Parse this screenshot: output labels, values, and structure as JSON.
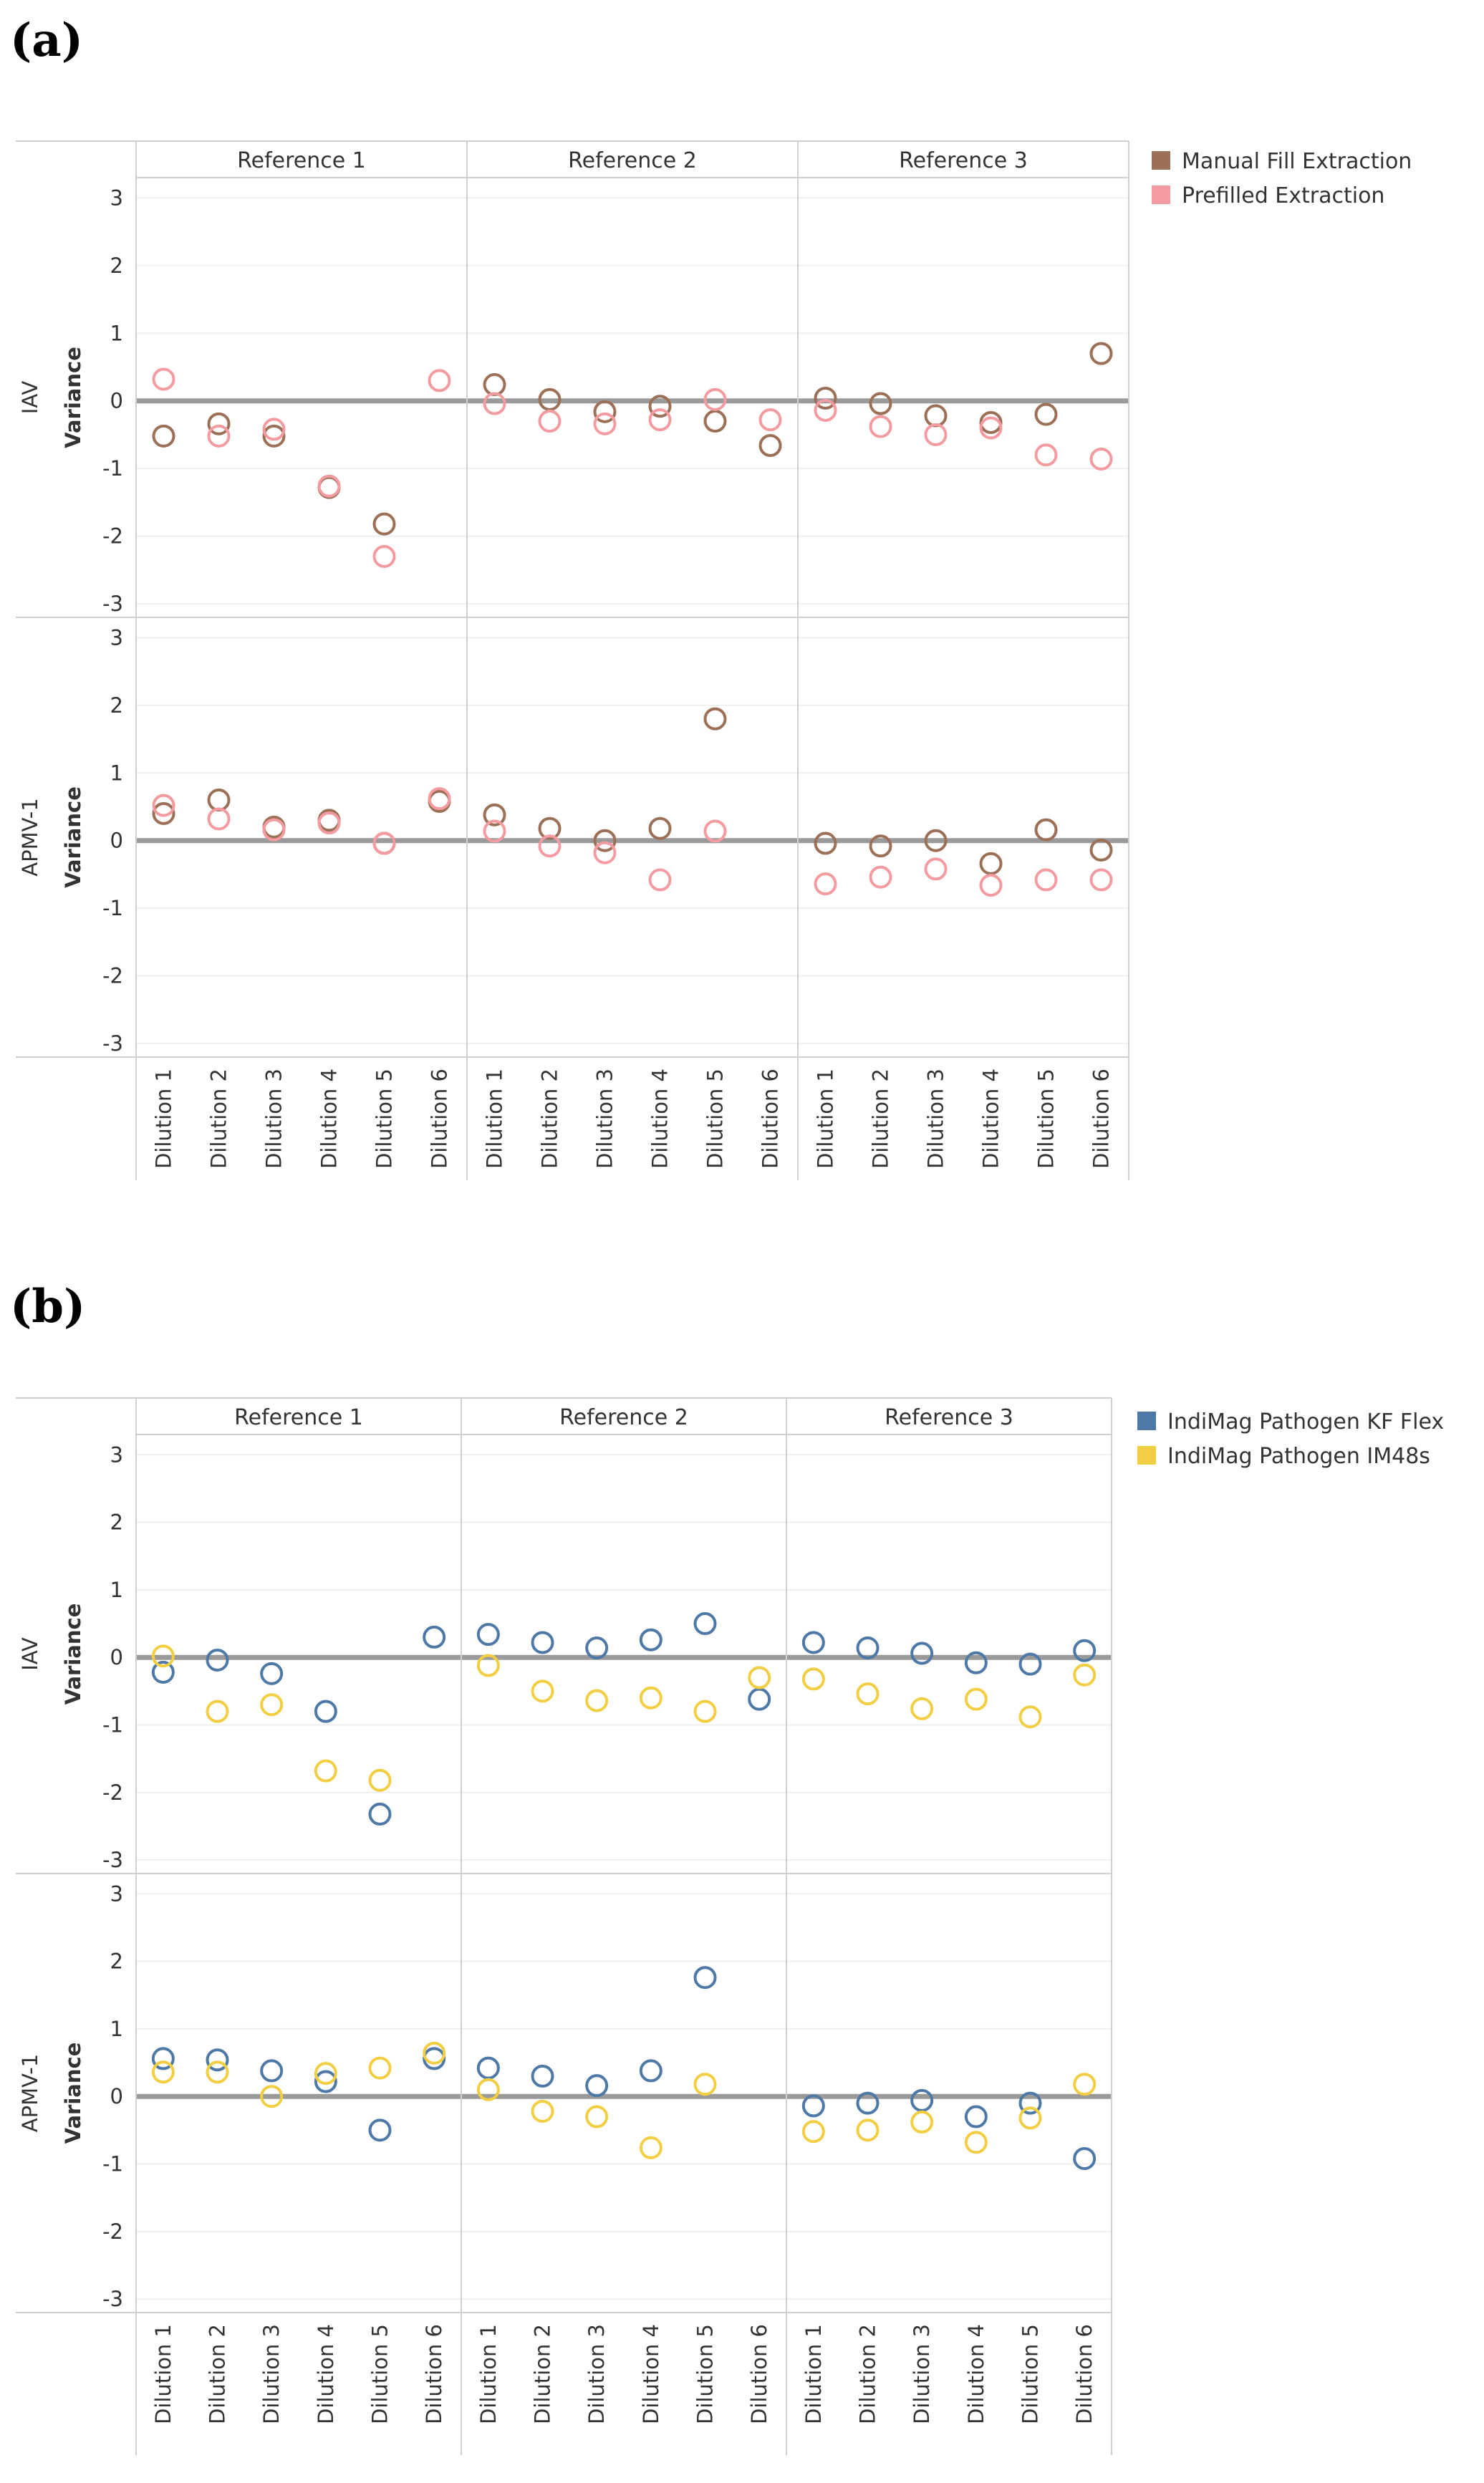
{
  "chart_data": [
    {
      "type": "scatter",
      "panel_label": "(a)",
      "column_titles": [
        "Reference 1",
        "Reference 2",
        "Reference 3"
      ],
      "categories": [
        "Dilution 1",
        "Dilution 2",
        "Dilution 3",
        "Dilution 4",
        "Dilution 5",
        "Dilution 6"
      ],
      "rows": [
        {
          "name": "IAV",
          "ylabel": "Variance"
        },
        {
          "name": "APMV-1",
          "ylabel": "Variance"
        }
      ],
      "yticks": [
        3,
        2,
        1,
        0,
        -1,
        -2,
        -3
      ],
      "ylim": [
        -3.2,
        3.3
      ],
      "legend_position": "top-right",
      "series": [
        {
          "name": "Manual Fill Extraction",
          "color": "#9c7057",
          "values": {
            "IAV": [
              [
                -0.52,
                -0.34,
                -0.52,
                -1.28,
                -1.82,
                null
              ],
              [
                0.24,
                0.02,
                -0.16,
                -0.08,
                -0.3,
                -0.66
              ],
              [
                0.04,
                -0.04,
                -0.22,
                -0.32,
                -0.2,
                0.7
              ]
            ],
            "APMV-1": [
              [
                0.4,
                0.6,
                0.2,
                0.3,
                -0.04,
                0.58
              ],
              [
                0.38,
                0.18,
                0.0,
                0.18,
                1.8,
                null
              ],
              [
                -0.04,
                -0.08,
                0.0,
                -0.34,
                0.16,
                -0.14
              ]
            ]
          }
        },
        {
          "name": "Prefilled Extraction",
          "color": "#f39ba0",
          "values": {
            "IAV": [
              [
                0.32,
                -0.52,
                -0.42,
                -1.26,
                -2.3,
                0.3
              ],
              [
                -0.04,
                -0.3,
                -0.34,
                -0.28,
                0.02,
                -0.28
              ],
              [
                -0.14,
                -0.38,
                -0.5,
                -0.4,
                -0.8,
                -0.86
              ]
            ],
            "APMV-1": [
              [
                0.52,
                0.32,
                0.16,
                0.26,
                -0.04,
                0.62
              ],
              [
                0.14,
                -0.08,
                -0.18,
                -0.58,
                0.14,
                null
              ],
              [
                -0.64,
                -0.54,
                -0.42,
                -0.66,
                -0.58,
                -0.58
              ]
            ]
          }
        }
      ]
    },
    {
      "type": "scatter",
      "panel_label": "(b)",
      "column_titles": [
        "Reference 1",
        "Reference 2",
        "Reference 3"
      ],
      "categories": [
        "Dilution 1",
        "Dilution 2",
        "Dilution 3",
        "Dilution 4",
        "Dilution 5",
        "Dilution 6"
      ],
      "rows": [
        {
          "name": "IAV",
          "ylabel": "Variance"
        },
        {
          "name": "APMV-1",
          "ylabel": "Variance"
        }
      ],
      "yticks": [
        3,
        2,
        1,
        0,
        -1,
        -2,
        -3
      ],
      "ylim": [
        -3.2,
        3.3
      ],
      "legend_position": "top-right",
      "series": [
        {
          "name": "IndiMag Pathogen KF Flex",
          "color": "#4e79a7",
          "values": {
            "IAV": [
              [
                -0.22,
                -0.04,
                -0.24,
                -0.8,
                -2.32,
                0.3
              ],
              [
                0.34,
                0.22,
                0.14,
                0.26,
                0.5,
                -0.62
              ],
              [
                0.22,
                0.14,
                0.06,
                -0.08,
                -0.1,
                0.1
              ]
            ],
            "APMV-1": [
              [
                0.56,
                0.54,
                0.38,
                0.22,
                -0.5,
                0.56
              ],
              [
                0.42,
                0.3,
                0.16,
                0.38,
                1.76,
                null
              ],
              [
                -0.14,
                -0.1,
                -0.06,
                -0.3,
                -0.1,
                -0.92
              ]
            ]
          }
        },
        {
          "name": "IndiMag Pathogen IM48s",
          "color": "#f1ce42",
          "values": {
            "IAV": [
              [
                0.02,
                -0.8,
                -0.7,
                -1.68,
                -1.82,
                null
              ],
              [
                -0.12,
                -0.5,
                -0.64,
                -0.6,
                -0.8,
                -0.3
              ],
              [
                -0.32,
                -0.54,
                -0.76,
                -0.62,
                -0.88,
                -0.26
              ]
            ],
            "APMV-1": [
              [
                0.36,
                0.36,
                0.0,
                0.34,
                0.42,
                0.64
              ],
              [
                0.1,
                -0.22,
                -0.3,
                -0.76,
                0.18,
                null
              ],
              [
                -0.52,
                -0.5,
                -0.38,
                -0.68,
                -0.32,
                0.18
              ]
            ]
          }
        }
      ]
    }
  ]
}
